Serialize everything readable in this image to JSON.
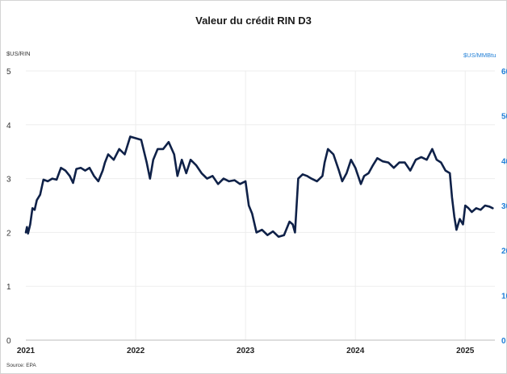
{
  "chart_data": {
    "type": "line",
    "title": "Valeur du crédit RIN D3",
    "source": "Source: EPA",
    "y_left": {
      "unit": "$US/RIN",
      "range": [
        0,
        5
      ],
      "ticks": [
        "0",
        "1",
        "2",
        "3",
        "4",
        "5"
      ]
    },
    "y_right": {
      "unit": "$US/MMBtu",
      "range": [
        0,
        60
      ],
      "ticks": [
        "0",
        "10",
        "20",
        "30",
        "40",
        "50",
        "60"
      ],
      "color": "#1f7ed6"
    },
    "x_axis": {
      "range": [
        2021.0,
        2025.27
      ],
      "ticks": [
        {
          "value": 2021,
          "label": "2021"
        },
        {
          "value": 2022,
          "label": "2022"
        },
        {
          "value": 2023,
          "label": "2023"
        },
        {
          "value": 2024,
          "label": "2024"
        },
        {
          "value": 2025,
          "label": "2025"
        }
      ]
    },
    "grid": {
      "horizontal": true,
      "vertical": true
    },
    "series": [
      {
        "color": "#0f2148",
        "x": [
          2021.0,
          2021.01,
          2021.02,
          2021.04,
          2021.06,
          2021.08,
          2021.1,
          2021.13,
          2021.16,
          2021.2,
          2021.24,
          2021.28,
          2021.32,
          2021.36,
          2021.4,
          2021.43,
          2021.46,
          2021.5,
          2021.54,
          2021.58,
          2021.62,
          2021.66,
          2021.7,
          2021.72,
          2021.75,
          2021.8,
          2021.85,
          2021.9,
          2021.95,
          2022.0,
          2022.05,
          2022.1,
          2022.13,
          2022.16,
          2022.2,
          2022.25,
          2022.3,
          2022.35,
          2022.38,
          2022.42,
          2022.46,
          2022.5,
          2022.55,
          2022.6,
          2022.65,
          2022.7,
          2022.75,
          2022.8,
          2022.85,
          2022.9,
          2022.95,
          2023.0,
          2023.03,
          2023.06,
          2023.1,
          2023.15,
          2023.2,
          2023.25,
          2023.3,
          2023.35,
          2023.4,
          2023.43,
          2023.45,
          2023.48,
          2023.52,
          2023.56,
          2023.6,
          2023.65,
          2023.7,
          2023.72,
          2023.75,
          2023.8,
          2023.85,
          2023.88,
          2023.92,
          2023.96,
          2024.0,
          2024.05,
          2024.08,
          2024.12,
          2024.16,
          2024.2,
          2024.25,
          2024.3,
          2024.35,
          2024.4,
          2024.45,
          2024.5,
          2024.55,
          2024.6,
          2024.65,
          2024.7,
          2024.74,
          2024.78,
          2024.82,
          2024.86,
          2024.88,
          2024.9,
          2024.92,
          2024.95,
          2024.98,
          2025.0,
          2025.03,
          2025.06,
          2025.1,
          2025.14,
          2025.18,
          2025.22,
          2025.25
        ],
        "y": [
          2.0,
          2.1,
          1.98,
          2.15,
          2.45,
          2.42,
          2.6,
          2.7,
          2.98,
          2.95,
          3.0,
          2.98,
          3.2,
          3.15,
          3.05,
          2.92,
          3.18,
          3.2,
          3.15,
          3.2,
          3.05,
          2.95,
          3.15,
          3.3,
          3.45,
          3.35,
          3.55,
          3.45,
          3.78,
          3.75,
          3.72,
          3.3,
          3.0,
          3.35,
          3.55,
          3.55,
          3.68,
          3.45,
          3.05,
          3.35,
          3.1,
          3.35,
          3.25,
          3.1,
          3.0,
          3.05,
          2.9,
          3.0,
          2.95,
          2.97,
          2.9,
          2.95,
          2.5,
          2.35,
          2.0,
          2.05,
          1.95,
          2.02,
          1.92,
          1.95,
          2.2,
          2.15,
          2.0,
          3.0,
          3.08,
          3.05,
          3.0,
          2.95,
          3.05,
          3.3,
          3.55,
          3.45,
          3.15,
          2.95,
          3.1,
          3.35,
          3.2,
          2.9,
          3.05,
          3.1,
          3.25,
          3.38,
          3.32,
          3.3,
          3.2,
          3.3,
          3.3,
          3.15,
          3.35,
          3.4,
          3.35,
          3.55,
          3.35,
          3.3,
          3.15,
          3.1,
          2.65,
          2.3,
          2.05,
          2.25,
          2.15,
          2.5,
          2.45,
          2.38,
          2.45,
          2.42,
          2.5,
          2.48,
          2.45
        ]
      }
    ]
  }
}
